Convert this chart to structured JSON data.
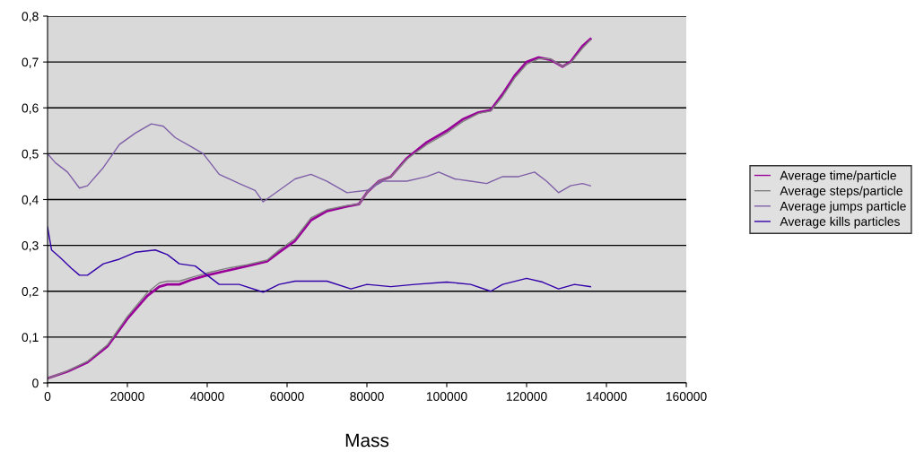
{
  "chart_data": {
    "type": "line",
    "xlabel": "Mass",
    "xlim": [
      0,
      160000
    ],
    "xticks": [
      0,
      20000,
      40000,
      60000,
      80000,
      100000,
      120000,
      140000,
      160000
    ],
    "ylim": [
      0,
      0.8
    ],
    "yticks": [
      0,
      {
        "value": 0.1,
        "label": "0,1"
      },
      {
        "value": 0.2,
        "label": "0,2"
      },
      {
        "value": 0.3,
        "label": "0,3"
      },
      {
        "value": 0.4,
        "label": "0,4"
      },
      {
        "value": 0.5,
        "label": "0,5"
      },
      {
        "value": 0.6,
        "label": "0,6"
      },
      {
        "value": 0.7,
        "label": "0,7"
      },
      {
        "value": 0.8,
        "label": "0,8"
      }
    ],
    "grid": "y",
    "legend": "right",
    "marker": "none",
    "line_style": "solid",
    "series": [
      {
        "name": "Average time/particle",
        "color": "#990099",
        "x": [
          0,
          5000,
          10000,
          15000,
          20000,
          25000,
          28000,
          30000,
          33000,
          36000,
          40000,
          45000,
          50000,
          55000,
          58000,
          62000,
          66000,
          70000,
          75000,
          78000,
          80000,
          83000,
          86000,
          90000,
          95000,
          100000,
          104000,
          108000,
          111000,
          114000,
          117000,
          120000,
          123000,
          126000,
          129000,
          131000,
          134000,
          136000
        ],
        "values": [
          0.01,
          0.025,
          0.045,
          0.08,
          0.14,
          0.19,
          0.21,
          0.215,
          0.215,
          0.225,
          0.235,
          0.245,
          0.255,
          0.265,
          0.285,
          0.31,
          0.355,
          0.375,
          0.385,
          0.39,
          0.415,
          0.44,
          0.45,
          0.49,
          0.525,
          0.55,
          0.575,
          0.59,
          0.595,
          0.63,
          0.67,
          0.7,
          0.71,
          0.705,
          0.69,
          0.7,
          0.735,
          0.75
        ]
      },
      {
        "name": "Average steps/particle",
        "color": "#808080",
        "x": [
          0,
          5000,
          10000,
          15000,
          20000,
          25000,
          28000,
          30000,
          33000,
          36000,
          40000,
          45000,
          50000,
          55000,
          58000,
          62000,
          66000,
          70000,
          75000,
          78000,
          80000,
          83000,
          86000,
          90000,
          95000,
          100000,
          104000,
          108000,
          111000,
          114000,
          117000,
          120000,
          123000,
          126000,
          129000,
          131000,
          134000,
          136000
        ],
        "values": [
          0.01,
          0.026,
          0.047,
          0.083,
          0.145,
          0.197,
          0.218,
          0.222,
          0.222,
          0.23,
          0.24,
          0.25,
          0.258,
          0.268,
          0.29,
          0.315,
          0.36,
          0.378,
          0.387,
          0.39,
          0.415,
          0.44,
          0.45,
          0.488,
          0.52,
          0.545,
          0.57,
          0.588,
          0.593,
          0.625,
          0.665,
          0.695,
          0.707,
          0.707,
          0.69,
          0.698,
          0.73,
          0.748
        ]
      },
      {
        "name": "Average jumps particle",
        "color": "#7f5fa8",
        "x": [
          0,
          2000,
          5000,
          8000,
          10000,
          14000,
          18000,
          22000,
          26000,
          29000,
          32000,
          36000,
          39000,
          43000,
          48000,
          52000,
          54000,
          58000,
          62000,
          66000,
          70000,
          75000,
          80000,
          84000,
          86000,
          90000,
          95000,
          98000,
          102000,
          106000,
          110000,
          114000,
          118000,
          122000,
          125000,
          128000,
          131000,
          134000,
          136000
        ],
        "values": [
          0.5,
          0.48,
          0.46,
          0.425,
          0.43,
          0.47,
          0.52,
          0.545,
          0.565,
          0.56,
          0.535,
          0.515,
          0.5,
          0.455,
          0.435,
          0.42,
          0.395,
          0.42,
          0.445,
          0.455,
          0.44,
          0.415,
          0.42,
          0.44,
          0.44,
          0.44,
          0.45,
          0.46,
          0.445,
          0.44,
          0.435,
          0.45,
          0.45,
          0.46,
          0.44,
          0.415,
          0.43,
          0.435,
          0.43
        ]
      },
      {
        "name": "Average kills particles",
        "color": "#3300aa",
        "x": [
          0,
          1000,
          3000,
          6000,
          8000,
          10000,
          14000,
          18000,
          22000,
          27000,
          30000,
          33000,
          37000,
          40000,
          43000,
          48000,
          54000,
          58000,
          62000,
          70000,
          76000,
          80000,
          86000,
          92000,
          100000,
          106000,
          111000,
          114000,
          120000,
          124000,
          128000,
          132000,
          136000
        ],
        "values": [
          0.34,
          0.29,
          0.275,
          0.25,
          0.235,
          0.235,
          0.26,
          0.27,
          0.285,
          0.29,
          0.28,
          0.26,
          0.255,
          0.235,
          0.215,
          0.215,
          0.198,
          0.215,
          0.222,
          0.222,
          0.205,
          0.215,
          0.21,
          0.215,
          0.22,
          0.215,
          0.2,
          0.215,
          0.228,
          0.22,
          0.205,
          0.215,
          0.21
        ]
      }
    ]
  }
}
